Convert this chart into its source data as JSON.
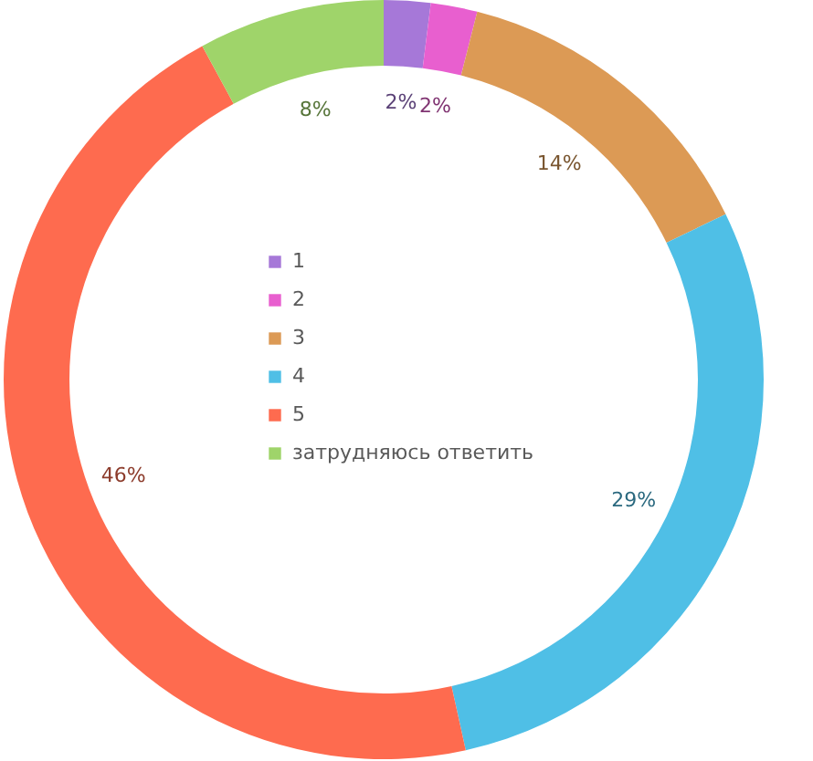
{
  "chart_data": {
    "type": "donut",
    "categories": [
      "1",
      "2",
      "3",
      "4",
      "5",
      "затрудняюсь ответить"
    ],
    "values": [
      2,
      2,
      14,
      29,
      46,
      8
    ],
    "value_labels": [
      "2%",
      "2%",
      "14%",
      "29%",
      "46%",
      "8%"
    ],
    "colors": [
      "#a678d8",
      "#e85fcf",
      "#dc9a55",
      "#4fbfe6",
      "#fe6b4f",
      "#9fd46a"
    ],
    "legend": "center"
  }
}
